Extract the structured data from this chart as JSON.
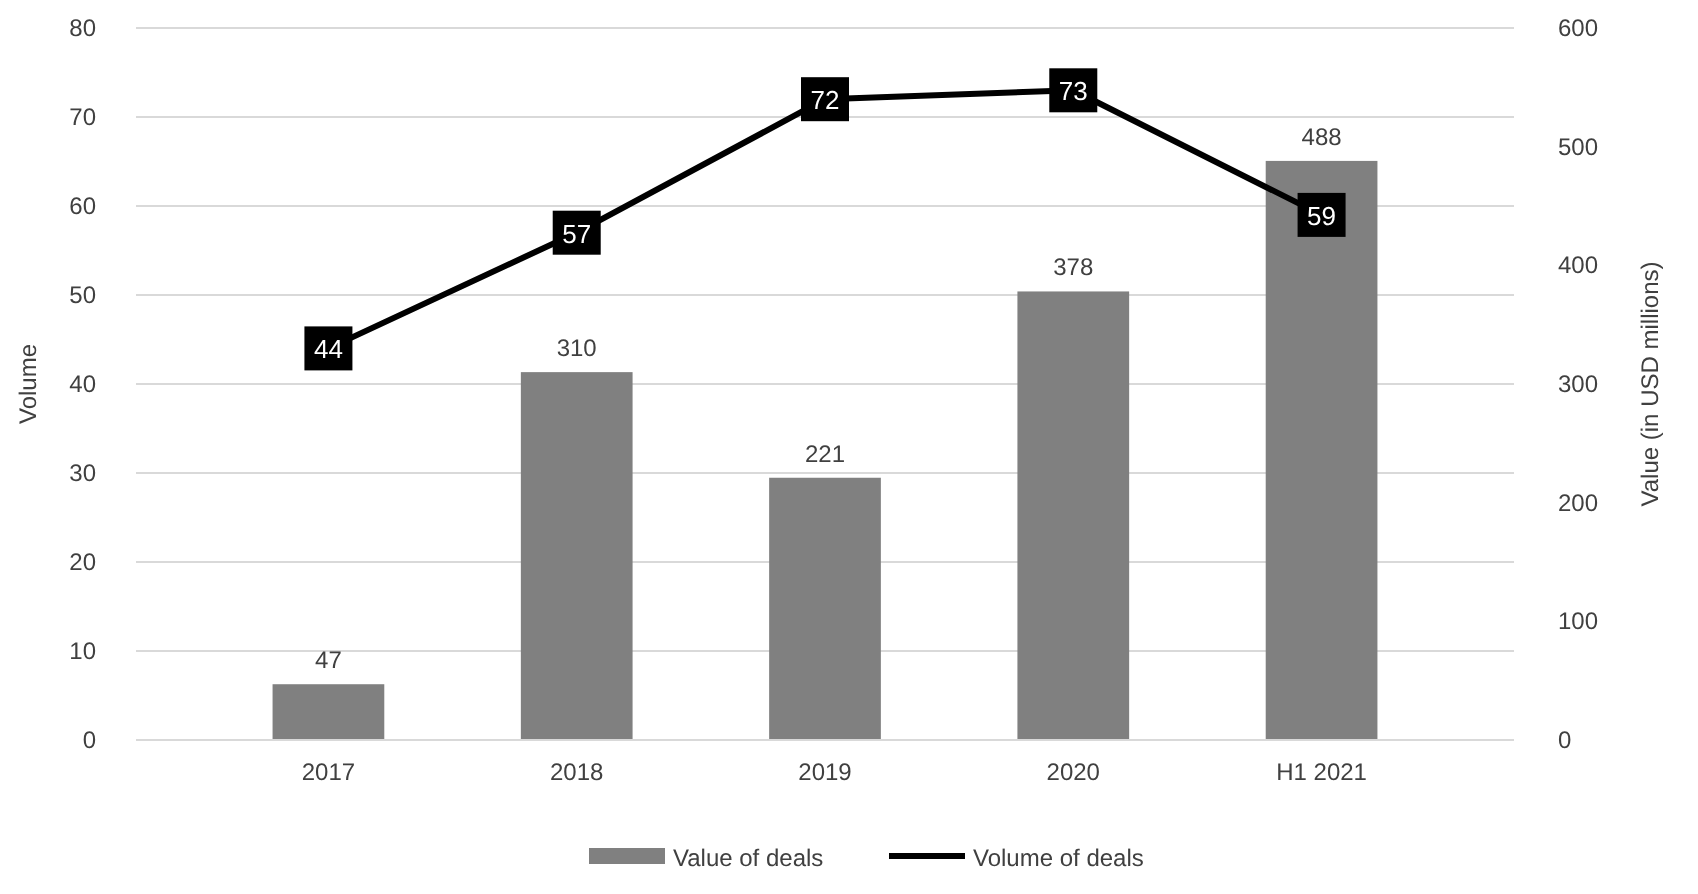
{
  "chart_data": {
    "type": "bar",
    "categories": [
      "2017",
      "2018",
      "2019",
      "2020",
      "H1 2021"
    ],
    "ylabel": "Volume",
    "y2label": "Value (in USD millions)",
    "ylim": [
      0,
      80
    ],
    "yticks": [
      0,
      10,
      20,
      30,
      40,
      50,
      60,
      70,
      80
    ],
    "y2lim": [
      0,
      600
    ],
    "y2ticks": [
      0,
      100,
      200,
      300,
      400,
      500,
      600
    ],
    "series": [
      {
        "name": "Value of deals",
        "axis": "y2",
        "color": "#808080",
        "values": [
          47,
          310,
          221,
          378,
          488
        ]
      },
      {
        "name": "Volume of deals",
        "type": "line",
        "axis": "y",
        "color": "#000000",
        "marker": "square",
        "values": [
          44,
          57,
          72,
          73,
          59
        ]
      }
    ],
    "data_labels": true,
    "grid": "y",
    "legend": "bottom",
    "line_style": "solid"
  }
}
